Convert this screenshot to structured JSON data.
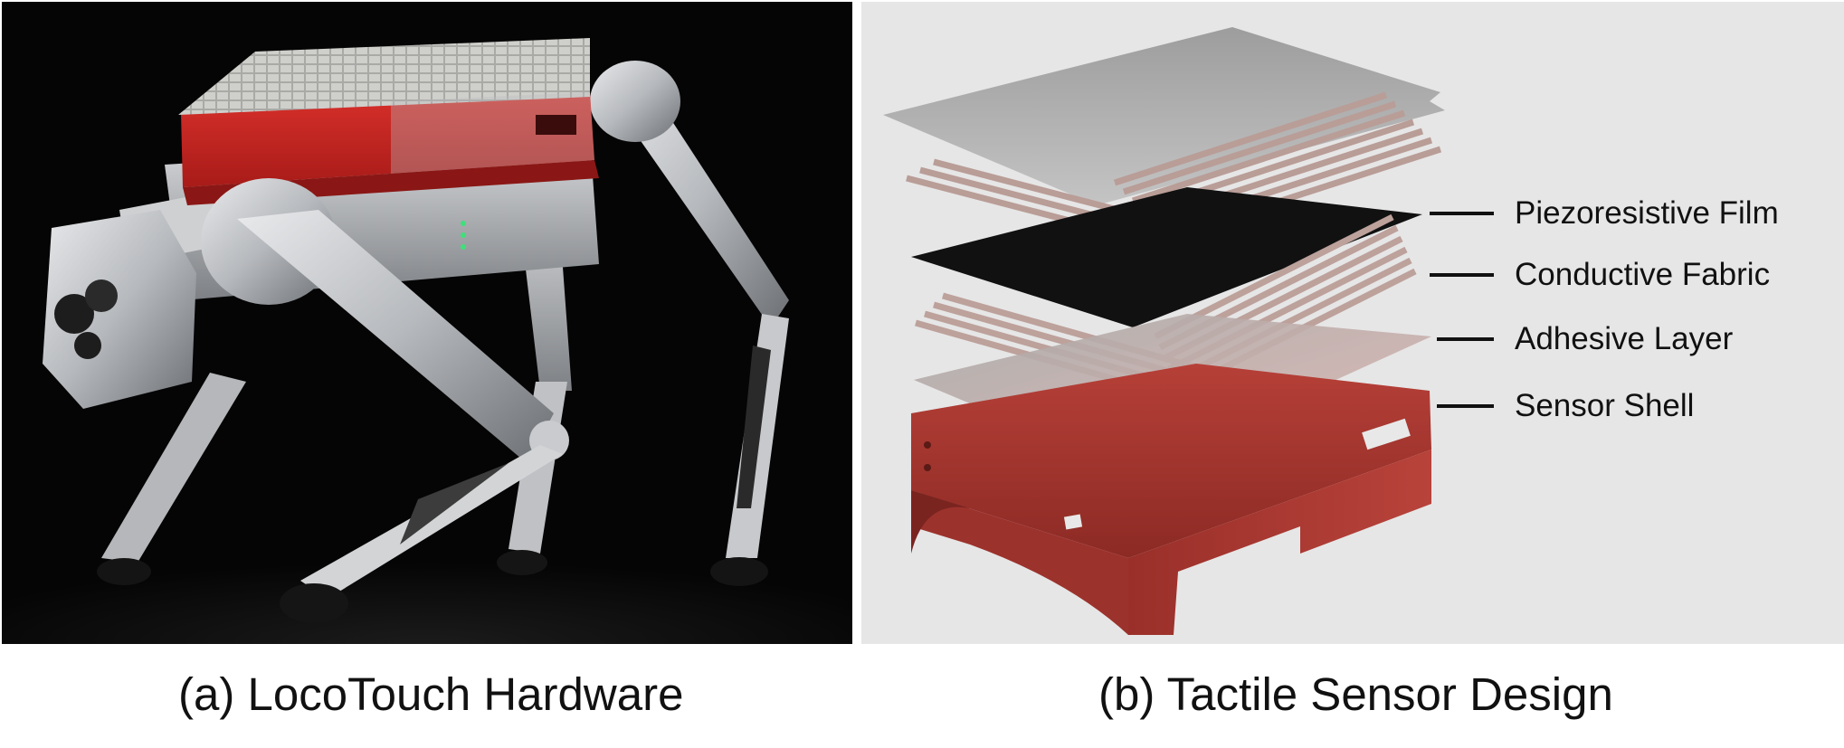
{
  "figure": {
    "panel_a": {
      "caption": "(a) LocoTouch Hardware",
      "image": "quadruped-robot-photo"
    },
    "panel_b": {
      "caption": "(b) Tactile Sensor Design",
      "image": "exploded-sensor-layers-render",
      "layer_labels": [
        "Piezoresistive Film",
        "Conductive Fabric",
        "Adhesive Layer",
        "Sensor Shell"
      ]
    }
  },
  "colors": {
    "robot_shell_red": "#c2211e",
    "robot_body_silver": "#b9bcc0",
    "sensor_shell_red": "#a3362f",
    "background_photo": "#050505",
    "background_render": "#e6e6e6"
  }
}
